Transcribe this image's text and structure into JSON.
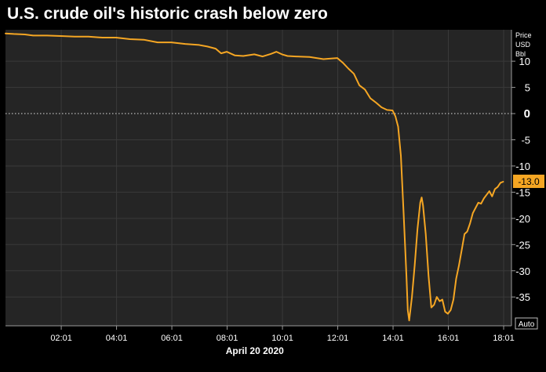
{
  "chart_data": {
    "type": "line",
    "title": "U.S. crude oil's historic crash below zero",
    "unit_label": [
      "Price",
      "USD",
      "Bbl"
    ],
    "xlabel": "April 20 2020",
    "ylabel": "",
    "x_tick_labels": [
      "02:01",
      "04:01",
      "06:01",
      "08:01",
      "10:01",
      "12:01",
      "14:01",
      "16:01",
      "18:01"
    ],
    "x_tick_hours": [
      2.0167,
      4.0167,
      6.0167,
      8.0167,
      10.0167,
      12.0167,
      14.0167,
      16.0167,
      18.0167
    ],
    "xlim": [
      0.0,
      18.3
    ],
    "y_ticks": [
      10,
      5,
      0,
      -5,
      -10,
      -15,
      -20,
      -25,
      -30,
      -35
    ],
    "ylim": [
      -40.5,
      16
    ],
    "last_price_label": "-13.0",
    "last_price_value": -13.0,
    "auto_label": "Auto",
    "zero_line": true,
    "grid": true,
    "series": [
      {
        "color": "#f5a623",
        "x": [
          0.0,
          0.3,
          0.7,
          1.0,
          1.5,
          2.0,
          2.5,
          3.0,
          3.5,
          4.0,
          4.5,
          5.0,
          5.5,
          6.0,
          6.5,
          7.0,
          7.3,
          7.6,
          7.8,
          8.0,
          8.3,
          8.6,
          9.0,
          9.3,
          9.6,
          9.8,
          10.0,
          10.2,
          10.5,
          11.0,
          11.5,
          12.0,
          12.2,
          12.4,
          12.6,
          12.8,
          13.0,
          13.2,
          13.4,
          13.6,
          13.8,
          14.0,
          14.1,
          14.2,
          14.3,
          14.4,
          14.45,
          14.5,
          14.55,
          14.6,
          14.7,
          14.8,
          14.9,
          15.0,
          15.05,
          15.1,
          15.2,
          15.3,
          15.4,
          15.5,
          15.6,
          15.7,
          15.8,
          15.9,
          16.0,
          16.1,
          16.2,
          16.3,
          16.4,
          16.5,
          16.6,
          16.7,
          16.8,
          16.9,
          17.0,
          17.1,
          17.2,
          17.3,
          17.4,
          17.5,
          17.6,
          17.7,
          17.8,
          17.9,
          18.0
        ],
        "values": [
          15.3,
          15.2,
          15.1,
          14.9,
          14.9,
          14.8,
          14.7,
          14.7,
          14.5,
          14.5,
          14.2,
          14.1,
          13.6,
          13.6,
          13.3,
          13.1,
          12.8,
          12.4,
          11.5,
          11.8,
          11.1,
          11.0,
          11.3,
          10.9,
          11.4,
          11.8,
          11.3,
          11.0,
          10.9,
          10.8,
          10.4,
          10.6,
          9.7,
          8.6,
          7.6,
          5.4,
          4.6,
          2.9,
          2.1,
          1.2,
          0.7,
          0.6,
          -0.5,
          -2.5,
          -8.0,
          -19.0,
          -25.0,
          -31.0,
          -37.5,
          -39.5,
          -35.0,
          -29.0,
          -22.0,
          -17.0,
          -16.0,
          -17.5,
          -23.0,
          -31.0,
          -37.0,
          -36.5,
          -35.0,
          -35.8,
          -35.5,
          -37.8,
          -38.2,
          -37.5,
          -35.5,
          -31.5,
          -29.0,
          -26.0,
          -23.0,
          -22.5,
          -21.0,
          -19.0,
          -18.0,
          -17.0,
          -17.2,
          -16.2,
          -15.5,
          -14.8,
          -15.8,
          -14.4,
          -14.0,
          -13.2,
          -13.0
        ]
      }
    ]
  }
}
